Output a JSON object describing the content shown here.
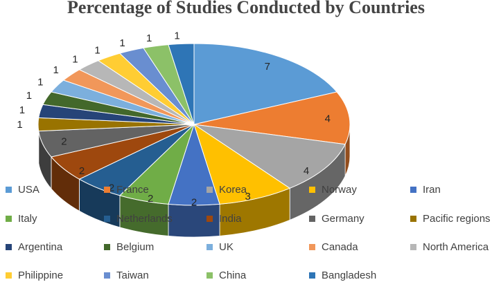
{
  "chart_data": {
    "type": "pie",
    "title": "Percentage of Studies Conducted by Countries",
    "categories": [
      "USA",
      "France",
      "Korea",
      "Norway",
      "Iran",
      "Italy",
      "Netherlands",
      "India",
      "Germany",
      "Pacific regions",
      "Argentina",
      "Belgium",
      "UK",
      "Canada",
      "North America",
      "Philippine",
      "Taiwan",
      "China",
      "Bangladesh"
    ],
    "values": [
      7,
      4,
      4,
      3,
      2,
      2,
      2,
      2,
      2,
      1,
      1,
      1,
      1,
      1,
      1,
      1,
      1,
      1,
      1
    ],
    "colors": [
      "#5b9bd5",
      "#ed7d31",
      "#a5a5a5",
      "#ffc000",
      "#4472c4",
      "#70ad47",
      "#255e91",
      "#9e480e",
      "#636363",
      "#997300",
      "#264478",
      "#43682b",
      "#7cafdd",
      "#f1975a",
      "#b7b7b7",
      "#ffcd33",
      "#698ed0",
      "#8cc168",
      "#2e75b6"
    ],
    "legend_position": "bottom"
  }
}
